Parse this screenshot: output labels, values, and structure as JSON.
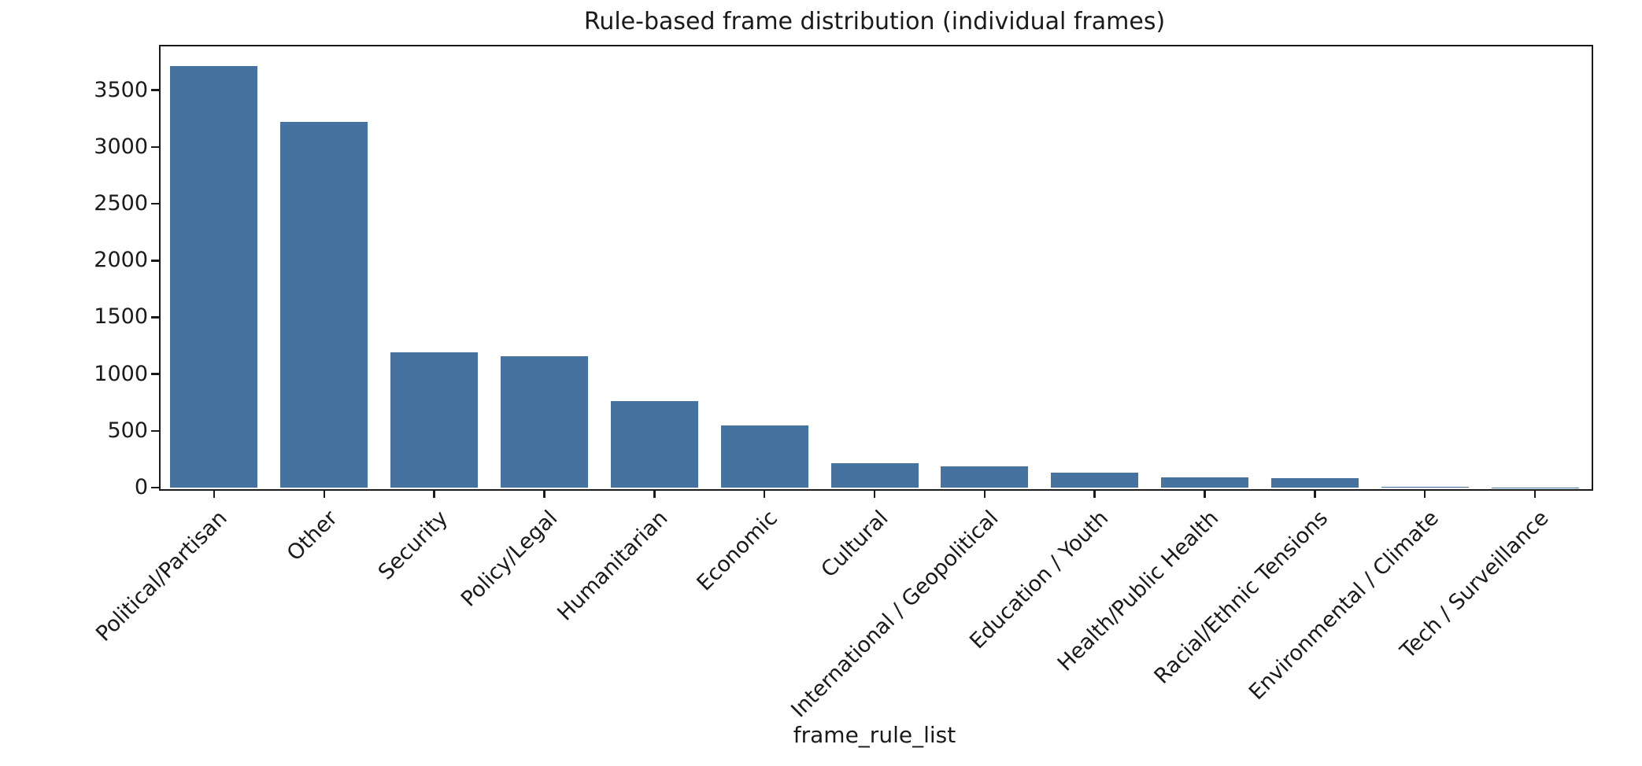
{
  "chart_data": {
    "type": "bar",
    "title": "Rule-based frame distribution (individual frames)",
    "xlabel": "frame_rule_list",
    "ylabel": "",
    "categories": [
      "Political/Partisan",
      "Other",
      "Security",
      "Policy/Legal",
      "Humanitarian",
      "Economic",
      "Cultural",
      "International / Geopolitical",
      "Education / Youth",
      "Health/Public Health",
      "Racial/Ethnic Tensions",
      "Environmental / Climate",
      "Tech / Surveillance"
    ],
    "values": [
      3716,
      3220,
      1190,
      1160,
      760,
      545,
      215,
      185,
      130,
      92,
      80,
      5,
      2
    ],
    "yticks": [
      0,
      500,
      1000,
      1500,
      2000,
      2500,
      3000,
      3500
    ],
    "ylim": [
      0,
      3900
    ],
    "grid": false,
    "legend_position": "none",
    "bar_color": "#4672A0",
    "axis_color": "#1a1a1a",
    "text_color": "#1a1a1a",
    "background_color": "#ffffff"
  }
}
